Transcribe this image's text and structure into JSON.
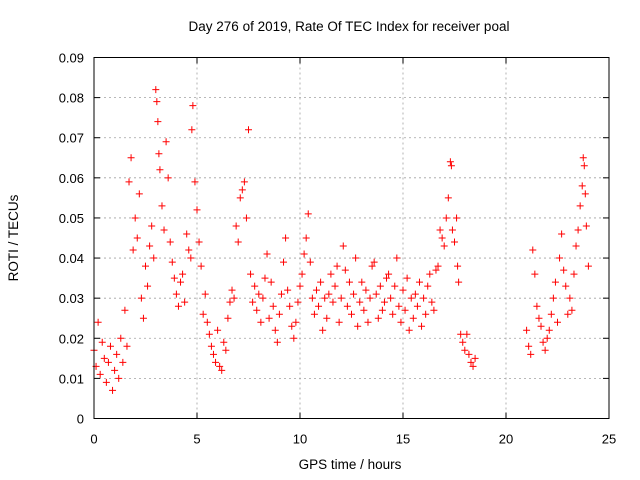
{
  "chart_data": {
    "type": "scatter",
    "title": "Day 276 of 2019, Rate Of TEC Index for receiver poal",
    "xlabel": "GPS time / hours",
    "ylabel": "ROTI / TECUs",
    "xlim": [
      0,
      25
    ],
    "ylim": [
      0,
      0.09
    ],
    "x_ticks": [
      "0",
      "5",
      "10",
      "15",
      "20",
      "25"
    ],
    "y_ticks": [
      "0",
      "0.01",
      "0.02",
      "0.03",
      "0.04",
      "0.05",
      "0.06",
      "0.07",
      "0.08",
      "0.09"
    ],
    "grid": true,
    "marker": "+",
    "color": "#ff0000",
    "series": [
      {
        "points": [
          [
            0.0,
            0.017
          ],
          [
            0.1,
            0.013
          ],
          [
            0.2,
            0.024
          ],
          [
            0.3,
            0.011
          ],
          [
            0.4,
            0.019
          ],
          [
            0.5,
            0.015
          ],
          [
            0.6,
            0.009
          ],
          [
            0.7,
            0.014
          ],
          [
            0.8,
            0.018
          ],
          [
            0.9,
            0.007
          ],
          [
            1.0,
            0.012
          ],
          [
            1.1,
            0.016
          ],
          [
            1.2,
            0.01
          ],
          [
            1.3,
            0.02
          ],
          [
            1.4,
            0.014
          ],
          [
            1.5,
            0.027
          ],
          [
            1.6,
            0.018
          ],
          [
            1.7,
            0.059
          ],
          [
            1.8,
            0.065
          ],
          [
            1.9,
            0.042
          ],
          [
            2.0,
            0.05
          ],
          [
            2.1,
            0.045
          ],
          [
            2.2,
            0.056
          ],
          [
            2.3,
            0.03
          ],
          [
            2.4,
            0.025
          ],
          [
            2.5,
            0.038
          ],
          [
            2.6,
            0.033
          ],
          [
            2.7,
            0.043
          ],
          [
            2.8,
            0.048
          ],
          [
            2.9,
            0.04
          ],
          [
            3.0,
            0.082
          ],
          [
            3.05,
            0.079
          ],
          [
            3.1,
            0.074
          ],
          [
            3.15,
            0.066
          ],
          [
            3.2,
            0.062
          ],
          [
            3.3,
            0.053
          ],
          [
            3.4,
            0.047
          ],
          [
            3.5,
            0.069
          ],
          [
            3.6,
            0.06
          ],
          [
            3.7,
            0.044
          ],
          [
            3.8,
            0.039
          ],
          [
            3.9,
            0.035
          ],
          [
            4.0,
            0.031
          ],
          [
            4.1,
            0.028
          ],
          [
            4.2,
            0.034
          ],
          [
            4.3,
            0.036
          ],
          [
            4.4,
            0.029
          ],
          [
            4.5,
            0.046
          ],
          [
            4.6,
            0.042
          ],
          [
            4.7,
            0.04
          ],
          [
            4.75,
            0.072
          ],
          [
            4.8,
            0.078
          ],
          [
            4.9,
            0.059
          ],
          [
            5.0,
            0.052
          ],
          [
            5.1,
            0.044
          ],
          [
            5.2,
            0.038
          ],
          [
            5.3,
            0.026
          ],
          [
            5.4,
            0.031
          ],
          [
            5.5,
            0.024
          ],
          [
            5.6,
            0.021
          ],
          [
            5.7,
            0.018
          ],
          [
            5.8,
            0.016
          ],
          [
            5.9,
            0.014
          ],
          [
            6.0,
            0.022
          ],
          [
            6.1,
            0.013
          ],
          [
            6.2,
            0.012
          ],
          [
            6.3,
            0.019
          ],
          [
            6.4,
            0.017
          ],
          [
            6.5,
            0.025
          ],
          [
            6.6,
            0.029
          ],
          [
            6.7,
            0.032
          ],
          [
            6.8,
            0.03
          ],
          [
            6.9,
            0.048
          ],
          [
            7.0,
            0.044
          ],
          [
            7.1,
            0.055
          ],
          [
            7.2,
            0.057
          ],
          [
            7.3,
            0.059
          ],
          [
            7.4,
            0.05
          ],
          [
            7.5,
            0.072
          ],
          [
            7.6,
            0.036
          ],
          [
            7.7,
            0.029
          ],
          [
            7.8,
            0.033
          ],
          [
            7.9,
            0.027
          ],
          [
            8.0,
            0.031
          ],
          [
            8.1,
            0.024
          ],
          [
            8.2,
            0.03
          ],
          [
            8.3,
            0.035
          ],
          [
            8.4,
            0.041
          ],
          [
            8.5,
            0.025
          ],
          [
            8.6,
            0.034
          ],
          [
            8.7,
            0.028
          ],
          [
            8.8,
            0.022
          ],
          [
            8.9,
            0.019
          ],
          [
            9.0,
            0.026
          ],
          [
            9.1,
            0.031
          ],
          [
            9.2,
            0.039
          ],
          [
            9.3,
            0.045
          ],
          [
            9.4,
            0.032
          ],
          [
            9.5,
            0.028
          ],
          [
            9.6,
            0.023
          ],
          [
            9.7,
            0.02
          ],
          [
            9.8,
            0.024
          ],
          [
            9.9,
            0.029
          ],
          [
            10.0,
            0.033
          ],
          [
            10.1,
            0.036
          ],
          [
            10.2,
            0.041
          ],
          [
            10.3,
            0.045
          ],
          [
            10.4,
            0.051
          ],
          [
            10.5,
            0.039
          ],
          [
            10.6,
            0.03
          ],
          [
            10.7,
            0.026
          ],
          [
            10.8,
            0.032
          ],
          [
            10.9,
            0.028
          ],
          [
            11.0,
            0.034
          ],
          [
            11.1,
            0.022
          ],
          [
            11.2,
            0.03
          ],
          [
            11.3,
            0.025
          ],
          [
            11.4,
            0.031
          ],
          [
            11.5,
            0.036
          ],
          [
            11.6,
            0.029
          ],
          [
            11.7,
            0.033
          ],
          [
            11.8,
            0.038
          ],
          [
            11.9,
            0.024
          ],
          [
            12.0,
            0.03
          ],
          [
            12.1,
            0.043
          ],
          [
            12.2,
            0.037
          ],
          [
            12.3,
            0.028
          ],
          [
            12.4,
            0.034
          ],
          [
            12.5,
            0.026
          ],
          [
            12.6,
            0.031
          ],
          [
            12.7,
            0.04
          ],
          [
            12.8,
            0.023
          ],
          [
            12.9,
            0.029
          ],
          [
            13.0,
            0.034
          ],
          [
            13.1,
            0.027
          ],
          [
            13.2,
            0.032
          ],
          [
            13.3,
            0.024
          ],
          [
            13.4,
            0.03
          ],
          [
            13.5,
            0.038
          ],
          [
            13.6,
            0.039
          ],
          [
            13.7,
            0.031
          ],
          [
            13.8,
            0.025
          ],
          [
            13.9,
            0.033
          ],
          [
            14.0,
            0.027
          ],
          [
            14.1,
            0.029
          ],
          [
            14.2,
            0.035
          ],
          [
            14.3,
            0.036
          ],
          [
            14.4,
            0.03
          ],
          [
            14.5,
            0.026
          ],
          [
            14.6,
            0.033
          ],
          [
            14.7,
            0.04
          ],
          [
            14.8,
            0.028
          ],
          [
            14.9,
            0.024
          ],
          [
            15.0,
            0.032
          ],
          [
            15.1,
            0.027
          ],
          [
            15.2,
            0.035
          ],
          [
            15.3,
            0.022
          ],
          [
            15.4,
            0.03
          ],
          [
            15.5,
            0.025
          ],
          [
            15.6,
            0.031
          ],
          [
            15.7,
            0.028
          ],
          [
            15.8,
            0.034
          ],
          [
            15.9,
            0.023
          ],
          [
            16.0,
            0.03
          ],
          [
            16.1,
            0.026
          ],
          [
            16.2,
            0.033
          ],
          [
            16.3,
            0.036
          ],
          [
            16.4,
            0.029
          ],
          [
            16.5,
            0.027
          ],
          [
            16.6,
            0.037
          ],
          [
            16.7,
            0.038
          ],
          [
            16.8,
            0.047
          ],
          [
            16.9,
            0.045
          ],
          [
            17.0,
            0.043
          ],
          [
            17.1,
            0.05
          ],
          [
            17.2,
            0.055
          ],
          [
            17.3,
            0.064
          ],
          [
            17.35,
            0.063
          ],
          [
            17.4,
            0.047
          ],
          [
            17.5,
            0.044
          ],
          [
            17.6,
            0.05
          ],
          [
            17.65,
            0.038
          ],
          [
            17.7,
            0.034
          ],
          [
            17.8,
            0.021
          ],
          [
            17.9,
            0.019
          ],
          [
            18.0,
            0.017
          ],
          [
            18.1,
            0.021
          ],
          [
            18.2,
            0.016
          ],
          [
            18.3,
            0.014
          ],
          [
            18.4,
            0.013
          ],
          [
            18.5,
            0.015
          ],
          [
            21.0,
            0.022
          ],
          [
            21.1,
            0.018
          ],
          [
            21.2,
            0.016
          ],
          [
            21.3,
            0.042
          ],
          [
            21.4,
            0.036
          ],
          [
            21.5,
            0.028
          ],
          [
            21.6,
            0.025
          ],
          [
            21.7,
            0.023
          ],
          [
            21.8,
            0.019
          ],
          [
            21.9,
            0.017
          ],
          [
            22.0,
            0.02
          ],
          [
            22.1,
            0.022
          ],
          [
            22.2,
            0.026
          ],
          [
            22.3,
            0.03
          ],
          [
            22.4,
            0.034
          ],
          [
            22.5,
            0.024
          ],
          [
            22.6,
            0.04
          ],
          [
            22.7,
            0.046
          ],
          [
            22.8,
            0.037
          ],
          [
            22.9,
            0.033
          ],
          [
            23.0,
            0.026
          ],
          [
            23.1,
            0.03
          ],
          [
            23.2,
            0.027
          ],
          [
            23.3,
            0.036
          ],
          [
            23.4,
            0.043
          ],
          [
            23.5,
            0.047
          ],
          [
            23.6,
            0.053
          ],
          [
            23.7,
            0.058
          ],
          [
            23.75,
            0.065
          ],
          [
            23.8,
            0.063
          ],
          [
            23.85,
            0.056
          ],
          [
            23.9,
            0.048
          ],
          [
            24.0,
            0.038
          ]
        ]
      }
    ]
  }
}
